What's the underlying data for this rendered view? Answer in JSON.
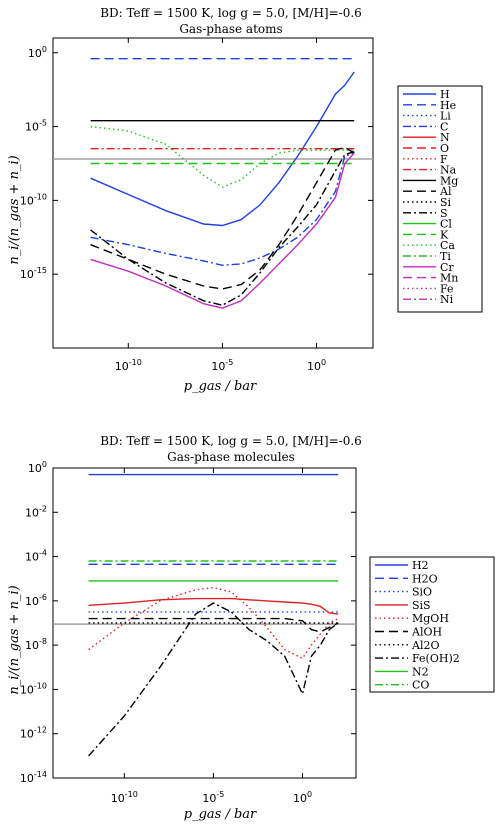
{
  "chart_data": [
    {
      "type": "line",
      "title": "BD: Teff = 1500 K, log g = 5.0, [M/H]=-0.6",
      "subtitle": "Gas-phase atoms",
      "xlabel": "p_gas / bar",
      "ylabel": "n_i/(n_gas + n_i)",
      "xscale": "log",
      "yscale": "log",
      "xlim_log10": [
        -14,
        3
      ],
      "ylim_log10": [
        -20,
        1
      ],
      "xticks": [
        "10^-10",
        "10^-5",
        "10^0"
      ],
      "yticks": [
        "10^0",
        "10^-5",
        "10^-10",
        "10^-15"
      ],
      "legend": "right-outside",
      "hline_log10": -7.2,
      "x_log10": [
        -12,
        -10,
        -8,
        -6,
        -5,
        -4,
        -3,
        -2,
        -1,
        0,
        1,
        1.5,
        2
      ],
      "series": [
        {
          "name": "H",
          "color": "#2040e0",
          "style": "solid",
          "values_log10": [
            -8.5,
            -9.6,
            -10.7,
            -11.6,
            -11.7,
            -11.3,
            -10.3,
            -8.8,
            -7.0,
            -5.0,
            -2.8,
            -2.2,
            -1.3
          ]
        },
        {
          "name": "He",
          "color": "#2040e0",
          "style": "dashed",
          "values_log10": [
            -0.4,
            -0.4,
            -0.4,
            -0.4,
            -0.4,
            -0.4,
            -0.4,
            -0.4,
            -0.4,
            -0.4,
            -0.4,
            -0.4,
            -0.4
          ]
        },
        {
          "name": "Li",
          "color": "#2040e0",
          "style": "dotted",
          "values_log10": []
        },
        {
          "name": "C",
          "color": "#2040e0",
          "style": "dashdot",
          "values_log10": [
            -12.5,
            -13.0,
            -13.6,
            -14.1,
            -14.4,
            -14.3,
            -13.9,
            -13.3,
            -12.5,
            -11.3,
            -9.4,
            -7.0,
            -6.8
          ]
        },
        {
          "name": "N",
          "color": "#e02020",
          "style": "solid",
          "values_log10": []
        },
        {
          "name": "O",
          "color": "#e02020",
          "style": "dashed",
          "values_log10": []
        },
        {
          "name": "F",
          "color": "#e02020",
          "style": "dotted",
          "values_log10": []
        },
        {
          "name": "Na",
          "color": "#e02020",
          "style": "dashdot",
          "values_log10": [
            -6.5,
            -6.5,
            -6.5,
            -6.5,
            -6.5,
            -6.5,
            -6.5,
            -6.5,
            -6.5,
            -6.5,
            -6.5,
            -6.5,
            -6.5
          ]
        },
        {
          "name": "Mg",
          "color": "#000000",
          "style": "solid",
          "values_log10": [
            -4.6,
            -4.6,
            -4.6,
            -4.6,
            -4.6,
            -4.6,
            -4.6,
            -4.6,
            -4.6,
            -4.6,
            -4.6,
            -4.6,
            -4.6
          ]
        },
        {
          "name": "Al",
          "color": "#000000",
          "style": "dashed",
          "values_log10": [
            -13.0,
            -14.0,
            -15.0,
            -15.8,
            -16.0,
            -15.7,
            -14.7,
            -13.0,
            -11.0,
            -8.8,
            -6.6,
            -6.4,
            -6.8
          ]
        },
        {
          "name": "Si",
          "color": "#000000",
          "style": "dotted",
          "values_log10": []
        },
        {
          "name": "S",
          "color": "#000000",
          "style": "dashdot",
          "values_log10": [
            -12.0,
            -14.0,
            -15.6,
            -16.8,
            -17.1,
            -16.4,
            -14.9,
            -13.2,
            -11.8,
            -10.3,
            -8.0,
            -6.9,
            -6.7
          ]
        },
        {
          "name": "Cl",
          "color": "#20c020",
          "style": "solid",
          "values_log10": []
        },
        {
          "name": "K",
          "color": "#20c020",
          "style": "dashed",
          "values_log10": [
            -7.5,
            -7.5,
            -7.5,
            -7.5,
            -7.5,
            -7.5,
            -7.5,
            -7.5,
            -7.5,
            -7.5,
            -7.5,
            -7.5,
            -7.5
          ]
        },
        {
          "name": "Ca",
          "color": "#20c020",
          "style": "dotted",
          "values_log10": [
            -5.0,
            -5.3,
            -6.2,
            -8.3,
            -9.1,
            -8.6,
            -7.5,
            -6.8,
            -6.6,
            -6.6,
            -6.6,
            -6.6,
            -6.6
          ]
        },
        {
          "name": "Ti",
          "color": "#20c020",
          "style": "dashdot",
          "values_log10": []
        },
        {
          "name": "Cr",
          "color": "#c030c0",
          "style": "solid",
          "values_log10": [
            -14.0,
            -14.8,
            -15.8,
            -17.0,
            -17.3,
            -16.8,
            -15.6,
            -14.3,
            -13.0,
            -11.6,
            -9.8,
            -7.5,
            -6.8
          ]
        },
        {
          "name": "Mn",
          "color": "#c030c0",
          "style": "dashed",
          "values_log10": []
        },
        {
          "name": "Fe",
          "color": "#c030c0",
          "style": "dotted",
          "values_log10": []
        },
        {
          "name": "Ni",
          "color": "#c030c0",
          "style": "dashdot",
          "values_log10": []
        }
      ]
    },
    {
      "type": "line",
      "title": "BD: Teff = 1500 K, log g = 5.0, [M/H]=-0.6",
      "subtitle": "Gas-phase molecules",
      "xlabel": "p_gas / bar",
      "ylabel": "n_i/(n_gas + n_i)",
      "xscale": "log",
      "yscale": "log",
      "xlim_log10": [
        -14,
        3
      ],
      "ylim_log10": [
        -14,
        0
      ],
      "xticks": [
        "10^-10",
        "10^-5",
        "10^0"
      ],
      "yticks": [
        "10^0",
        "10^-2",
        "10^-4",
        "10^-6",
        "10^-8",
        "10^-10",
        "10^-12",
        "10^-14"
      ],
      "legend": "right-outside",
      "hline_log10": -7.05,
      "x_log10": [
        -12,
        -10,
        -8,
        -6,
        -5,
        -4,
        -3,
        -2,
        -1,
        0,
        0.5,
        1,
        1.5,
        2
      ],
      "series": [
        {
          "name": "H2",
          "color": "#2040e0",
          "style": "solid",
          "values_log10": [
            -0.3,
            -0.3,
            -0.3,
            -0.3,
            -0.3,
            -0.3,
            -0.3,
            -0.3,
            -0.3,
            -0.3,
            -0.3,
            -0.3,
            -0.3,
            -0.3
          ]
        },
        {
          "name": "H2O",
          "color": "#2040e0",
          "style": "dashed",
          "values_log10": [
            -4.35,
            -4.35,
            -4.35,
            -4.35,
            -4.35,
            -4.35,
            -4.35,
            -4.35,
            -4.35,
            -4.35,
            -4.35,
            -4.35,
            -4.35,
            -4.35
          ]
        },
        {
          "name": "SiO",
          "color": "#2040e0",
          "style": "dotted",
          "values_log10": [
            -6.5,
            -6.5,
            -6.5,
            -6.5,
            -6.5,
            -6.5,
            -6.5,
            -6.5,
            -6.5,
            -6.5,
            -6.5,
            -6.5,
            -6.5,
            -6.5
          ]
        },
        {
          "name": "SiS",
          "color": "#e02020",
          "style": "solid",
          "values_log10": [
            -6.2,
            -6.1,
            -5.95,
            -5.9,
            -5.9,
            -5.9,
            -5.95,
            -6.0,
            -6.05,
            -6.1,
            -6.15,
            -6.25,
            -6.55,
            -6.6
          ]
        },
        {
          "name": "MgOH",
          "color": "#e02020",
          "style": "dotted",
          "values_log10": [
            -8.2,
            -7.0,
            -6.0,
            -5.5,
            -5.4,
            -5.6,
            -6.3,
            -7.2,
            -8.2,
            -8.6,
            -8.0,
            -7.5,
            -7.0,
            -6.8
          ]
        },
        {
          "name": "AlOH",
          "color": "#000000",
          "style": "dashed",
          "values_log10": [
            -6.8,
            -6.8,
            -6.8,
            -6.8,
            -6.8,
            -6.8,
            -6.8,
            -6.8,
            -6.8,
            -6.9,
            -7.3,
            -7.4,
            -7.2,
            -7.0
          ]
        },
        {
          "name": "Al2O",
          "color": "#000000",
          "style": "dotted",
          "values_log10": [
            -7.0,
            -7.0,
            -7.0,
            -7.0,
            -7.0,
            -7.0,
            -7.0,
            -7.0,
            -7.0,
            -7.0,
            -7.0,
            -7.0,
            -7.0,
            -7.0
          ]
        },
        {
          "name": "Fe(OH)2",
          "color": "#000000",
          "style": "dashdot",
          "values_log10": [
            -13.0,
            -11.2,
            -9.0,
            -6.6,
            -6.1,
            -6.5,
            -7.3,
            -7.8,
            -8.5,
            -10.2,
            -8.5,
            -8.0,
            -7.3,
            -7.0
          ]
        },
        {
          "name": "N2",
          "color": "#20c020",
          "style": "solid",
          "values_log10": [
            -5.1,
            -5.1,
            -5.1,
            -5.1,
            -5.1,
            -5.1,
            -5.1,
            -5.1,
            -5.1,
            -5.1,
            -5.1,
            -5.1,
            -5.1,
            -5.1
          ]
        },
        {
          "name": "CO",
          "color": "#20c020",
          "style": "dashdot",
          "values_log10": [
            -4.2,
            -4.2,
            -4.2,
            -4.2,
            -4.2,
            -4.2,
            -4.2,
            -4.2,
            -4.2,
            -4.2,
            -4.2,
            -4.2,
            -4.2,
            -4.2
          ]
        }
      ]
    }
  ]
}
